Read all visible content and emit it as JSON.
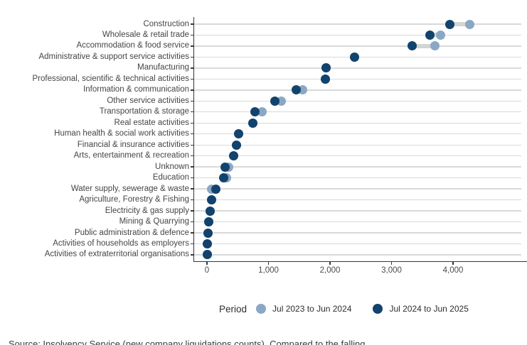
{
  "chart_data": {
    "type": "scatter",
    "variant": "dumbbell-dot-plot",
    "title": "",
    "xlabel": "",
    "ylabel": "",
    "xlim": [
      -210,
      5150
    ],
    "grid": "horizontal-per-category",
    "x_ticks": [
      0,
      1000,
      2000,
      3000,
      4000
    ],
    "x_tick_labels": [
      "0",
      "1,000",
      "2,000",
      "3,000",
      "4,000"
    ],
    "categories": [
      "Construction",
      "Wholesale & retail trade",
      "Accommodation & food service",
      "Administrative & support service activities",
      "Manufacturing",
      "Professional, scientific & technical activities",
      "Information & communication",
      "Other service activities",
      "Transportation & storage",
      "Real estate activities",
      "Human health & social work activities",
      "Financial & insurance activities",
      "Arts, entertainment & recreation",
      "Unknown",
      "Education",
      "Water supply, sewerage & waste",
      "Agriculture, Forestry & Fishing",
      "Electricity & gas supply",
      "Mining & Quarrying",
      "Public administration & defence",
      "Activities of households as employers",
      "Activities of extraterritorial organisations"
    ],
    "series": [
      {
        "name": "Jul 2023 to Jun 2024",
        "color": "#8ba7c6",
        "values": [
          4270,
          3800,
          3710,
          2400,
          1940,
          1930,
          1550,
          1210,
          900,
          750,
          520,
          480,
          430,
          350,
          320,
          70,
          80,
          50,
          25,
          20,
          10,
          10
        ]
      },
      {
        "name": "Jul 2024 to Jun 2025",
        "color": "#12436d",
        "values": [
          3950,
          3630,
          3330,
          2400,
          1940,
          1930,
          1450,
          1100,
          780,
          750,
          520,
          480,
          430,
          300,
          270,
          150,
          80,
          50,
          25,
          20,
          10,
          10
        ]
      }
    ],
    "legend": {
      "title": "Period",
      "position": "bottom",
      "series": [
        {
          "name": "Jul 2023 to Jun 2024",
          "color": "#8ba7c6"
        },
        {
          "name": "Jul 2024 to Jun 2025",
          "color": "#12436d"
        }
      ]
    }
  },
  "colors": {
    "series_previous": "#8ba7c6",
    "series_current": "#12436d",
    "connector": "#d4d4d4",
    "gridline": "#d9d9d9",
    "axis": "#373737",
    "category_label": "#454545",
    "tick_label": "#4a4a4a",
    "legend_text": "#2e2e2e",
    "caption_text": "#3a3a3a",
    "background": "#ffffff"
  },
  "caption_clipped": "Source: Insolvency Service (new company liquidations counts). Compared to the falling"
}
